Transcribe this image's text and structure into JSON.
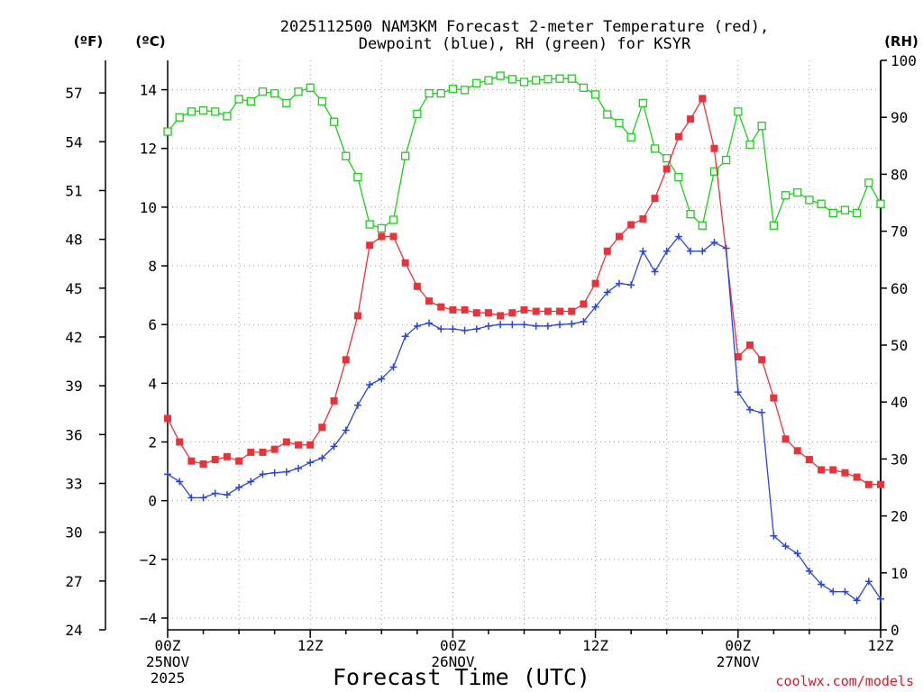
{
  "chart_data": {
    "type": "line",
    "title_line1": "2025112500 NAM3KM Forecast 2-meter Temperature (red),",
    "title_line2": "Dewpoint (blue), RH (green) for KSYR",
    "unit_f": "(ºF)",
    "unit_c": "(ºC)",
    "unit_rh": "(RH)",
    "xlabel": "Forecast Time (UTC)",
    "credit": "coolwx.com/models",
    "x_range": [
      0,
      60
    ],
    "c_range": [
      -4.4,
      15
    ],
    "rh_range": [
      0,
      100
    ],
    "f_range": [
      24,
      59
    ],
    "f_ticks": [
      "24",
      "27",
      "30",
      "33",
      "36",
      "39",
      "42",
      "45",
      "48",
      "51",
      "54",
      "57"
    ],
    "c_ticks": [
      "-4",
      "-2",
      "0",
      "2",
      "4",
      "6",
      "8",
      "10",
      "12",
      "14"
    ],
    "rh_ticks": [
      "0",
      "10",
      "20",
      "30",
      "40",
      "50",
      "60",
      "70",
      "80",
      "90",
      "100"
    ],
    "x_ticks": [
      {
        "hour": 0,
        "lines": [
          "00Z",
          "25NOV",
          "2025"
        ]
      },
      {
        "hour": 12,
        "lines": [
          "12Z"
        ]
      },
      {
        "hour": 24,
        "lines": [
          "00Z",
          "26NOV"
        ]
      },
      {
        "hour": 36,
        "lines": [
          "12Z"
        ]
      },
      {
        "hour": 48,
        "lines": [
          "00Z",
          "27NOV"
        ]
      },
      {
        "hour": 60,
        "lines": [
          "12Z"
        ]
      }
    ],
    "colors": {
      "temperature": "#e8333a",
      "dewpoint": "#2a45d8",
      "rh": "#1fcc1f",
      "grid": "#9a9a9a"
    },
    "series": [
      {
        "name": "Temperature",
        "units": "C",
        "marker": "filled-square",
        "color": "#e8333a",
        "hours": [
          0,
          1,
          2,
          3,
          4,
          5,
          6,
          7,
          8,
          9,
          10,
          11,
          12,
          13,
          14,
          15,
          16,
          17,
          18,
          19,
          20,
          21,
          22,
          23,
          24,
          25,
          26,
          27,
          28,
          29,
          30,
          31,
          32,
          33,
          34,
          35,
          36,
          37,
          38,
          39,
          40,
          41,
          42,
          43,
          44,
          45,
          46,
          47,
          48,
          49,
          50,
          51,
          52,
          53,
          54,
          55,
          56,
          57,
          58,
          59,
          60
        ],
        "values": [
          2.8,
          2.0,
          1.35,
          1.25,
          1.4,
          1.5,
          1.35,
          1.65,
          1.65,
          1.75,
          2.0,
          1.9,
          1.9,
          2.5,
          3.4,
          4.8,
          6.3,
          8.7,
          9.0,
          9.0,
          8.1,
          7.3,
          6.8,
          6.6,
          6.5,
          6.5,
          6.4,
          6.4,
          6.3,
          6.4,
          6.5,
          6.45,
          6.45,
          6.45,
          6.45,
          6.7,
          7.4,
          8.5,
          9.0,
          9.4,
          9.6,
          10.3,
          11.3,
          12.4,
          13.0,
          13.7,
          12.0,
          null,
          4.9,
          5.3,
          4.8,
          3.5,
          2.1,
          1.7,
          1.4,
          1.05,
          1.05,
          0.95,
          0.8,
          0.55,
          0.55
        ]
      },
      {
        "name": "Dewpoint",
        "units": "C",
        "marker": "plus",
        "color": "#2a45d8",
        "hours": [
          0,
          1,
          2,
          3,
          4,
          5,
          6,
          7,
          8,
          9,
          10,
          11,
          12,
          13,
          14,
          15,
          16,
          17,
          18,
          19,
          20,
          21,
          22,
          23,
          24,
          25,
          26,
          27,
          28,
          29,
          30,
          31,
          32,
          33,
          34,
          35,
          36,
          37,
          38,
          39,
          40,
          41,
          42,
          43,
          44,
          45,
          46,
          47,
          48,
          49,
          50,
          51,
          52,
          53,
          54,
          55,
          56,
          57,
          58,
          59,
          60
        ],
        "values": [
          0.9,
          0.65,
          0.1,
          0.1,
          0.25,
          0.2,
          0.45,
          0.65,
          0.9,
          0.95,
          0.98,
          1.1,
          1.3,
          1.45,
          1.85,
          2.4,
          3.25,
          3.95,
          4.15,
          4.55,
          5.6,
          5.95,
          6.05,
          5.85,
          5.85,
          5.8,
          5.85,
          5.95,
          6.0,
          6.0,
          6.0,
          5.95,
          5.95,
          6.0,
          6.02,
          6.1,
          6.6,
          7.1,
          7.4,
          7.35,
          8.5,
          7.8,
          8.5,
          9.0,
          8.5,
          8.5,
          8.8,
          8.6,
          3.7,
          3.1,
          3.0,
          -1.2,
          -1.55,
          -1.8,
          -2.4,
          -2.85,
          -3.1,
          -3.1,
          -3.4,
          -2.75,
          -3.35
        ]
      },
      {
        "name": "Relative Humidity",
        "units": "%",
        "marker": "open-square",
        "color": "#1fcc1f",
        "hours": [
          0,
          1,
          2,
          3,
          4,
          5,
          6,
          7,
          8,
          9,
          10,
          11,
          12,
          13,
          14,
          15,
          16,
          17,
          18,
          19,
          20,
          21,
          22,
          23,
          24,
          25,
          26,
          27,
          28,
          29,
          30,
          31,
          32,
          33,
          34,
          35,
          36,
          37,
          38,
          39,
          40,
          41,
          42,
          43,
          44,
          45,
          46,
          47,
          48,
          49,
          50,
          51,
          52,
          53,
          54,
          55,
          56,
          57,
          58,
          59,
          60
        ],
        "values": [
          87.5,
          90,
          91,
          91.2,
          91,
          90.2,
          93.2,
          92.8,
          94.5,
          94.2,
          92.5,
          94.5,
          95.2,
          92.8,
          89.2,
          83.2,
          79.5,
          71.2,
          70.5,
          72,
          83.2,
          90.6,
          94.2,
          94.2,
          95,
          94.8,
          96,
          96.5,
          97.3,
          96.7,
          96.2,
          96.5,
          96.7,
          96.8,
          96.8,
          95.2,
          94,
          90.5,
          89,
          86.5,
          92.5,
          84.5,
          82.8,
          79.5,
          73,
          71,
          80.5,
          82.5,
          91,
          85.2,
          88.5,
          71,
          76.3,
          76.8,
          75.5,
          74.8,
          73.2,
          73.7,
          73.2,
          78.5,
          74.8
        ]
      }
    ]
  }
}
